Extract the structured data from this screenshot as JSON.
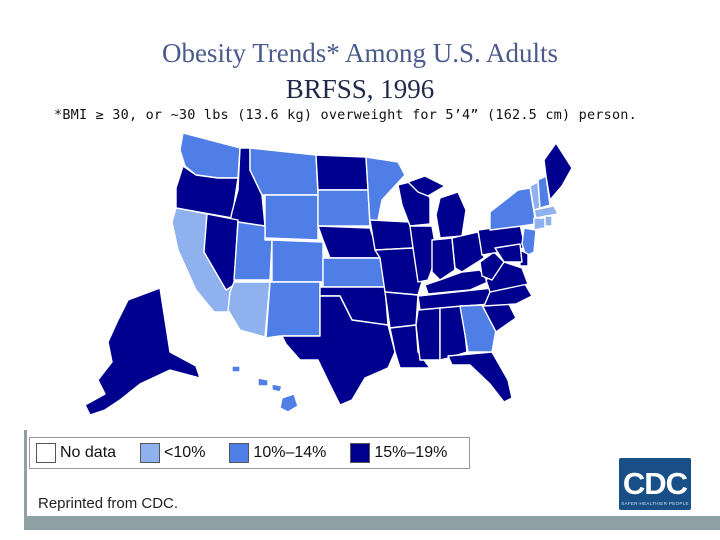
{
  "title": {
    "line1": "Obesity Trends* Among U.S. Adults",
    "line2": "BRFSS, 1996"
  },
  "footnote": "*BMI ≥ 30, or ~30 lbs (13.6 kg) overweight for 5’4” (162.5 cm) person.",
  "legend": {
    "items": [
      {
        "key": "none",
        "label": "No data",
        "color": "#ffffff"
      },
      {
        "key": "low",
        "label": "<10%",
        "color": "#8fb1ee"
      },
      {
        "key": "mid",
        "label": "10%–14%",
        "color": "#4f7fe6"
      },
      {
        "key": "high",
        "label": "15%–19%",
        "color": "#00008e"
      }
    ]
  },
  "map_data": {
    "categories": {
      "low": {
        "range": "<10%",
        "color": "#8fb1ee"
      },
      "mid": {
        "range": "10%–14%",
        "color": "#4f7fe6"
      },
      "high": {
        "range": "15%–19%",
        "color": "#00008e"
      }
    },
    "states": {
      "WA": "mid",
      "OR": "high",
      "CA": "low",
      "ID": "high",
      "NV": "high",
      "MT": "mid",
      "WY": "mid",
      "UT": "mid",
      "AZ": "low",
      "CO": "mid",
      "NM": "mid",
      "ND": "high",
      "SD": "mid",
      "NE": "high",
      "KS": "mid",
      "OK": "high",
      "TX": "high",
      "MN": "mid",
      "IA": "high",
      "MO": "high",
      "AR": "high",
      "LA": "high",
      "WI": "high",
      "IL": "high",
      "MI": "high",
      "IN": "high",
      "OH": "high",
      "KY": "high",
      "TN": "high",
      "MS": "high",
      "AL": "high",
      "GA": "mid",
      "FL": "high",
      "SC": "high",
      "NC": "high",
      "VA": "high",
      "WV": "high",
      "PA": "high",
      "NY": "mid",
      "VT": "low",
      "NH": "mid",
      "ME": "high",
      "MA": "low",
      "CT": "low",
      "RI": "low",
      "NJ": "mid",
      "DE": "high",
      "MD": "high",
      "AK": "high",
      "HI": "mid"
    }
  },
  "footer": {
    "reprint": "Reprinted from CDC.",
    "logo_text": "CDC",
    "logo_sub": "SAFER·HEALTHIER·PEOPLE"
  }
}
